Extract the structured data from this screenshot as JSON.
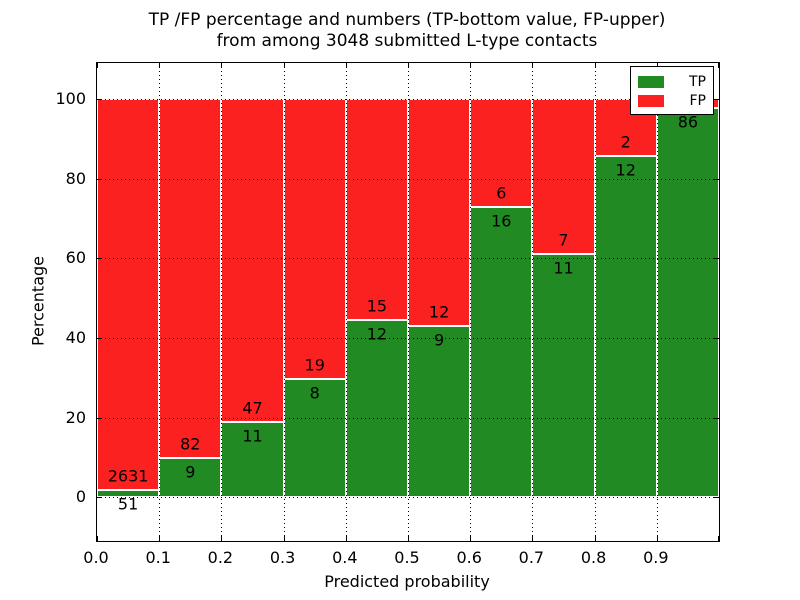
{
  "chart_data": {
    "type": "bar",
    "stacked": true,
    "unit": "percent",
    "title_line1": "TP /FP percentage and numbers (TP-bottom value, FP-upper)",
    "title_line2": "from among 3048 submitted L-type contacts",
    "total_contacts": 3048,
    "xlabel": "Predicted probability",
    "ylabel": "Percentage",
    "x_tick_labels": [
      "0.0",
      "0.1",
      "0.2",
      "0.3",
      "0.4",
      "0.5",
      "0.6",
      "0.7",
      "0.8",
      "0.9"
    ],
    "y_tick_labels": [
      "0",
      "20",
      "40",
      "60",
      "80",
      "100"
    ],
    "y_tick_values": [
      0,
      20,
      40,
      60,
      80,
      100
    ],
    "ylim": [
      -11,
      109
    ],
    "xlim": [
      0.0,
      1.0
    ],
    "grid": "dotted",
    "legend_position": "upper right",
    "legend": [
      {
        "name": "tp",
        "label": "TP",
        "color": "#228a22"
      },
      {
        "name": "fp",
        "label": "FP",
        "color": "#fc2121"
      }
    ],
    "colors": {
      "tp": "#228a22",
      "fp": "#fc2121",
      "background": "#ffffff",
      "axis": "#000000",
      "bar_edge": "#ffffff"
    },
    "bins": [
      {
        "x_range": "0.0-0.1",
        "tp": 51,
        "fp": 2631,
        "tp_pct": 1.9,
        "tp_label": "51",
        "fp_label": "2631"
      },
      {
        "x_range": "0.1-0.2",
        "tp": 9,
        "fp": 82,
        "tp_pct": 9.89,
        "tp_label": "9",
        "fp_label": "82"
      },
      {
        "x_range": "0.2-0.3",
        "tp": 11,
        "fp": 47,
        "tp_pct": 18.97,
        "tp_label": "11",
        "fp_label": "47"
      },
      {
        "x_range": "0.3-0.4",
        "tp": 8,
        "fp": 19,
        "tp_pct": 29.63,
        "tp_label": "8",
        "fp_label": "19"
      },
      {
        "x_range": "0.4-0.5",
        "tp": 12,
        "fp": 15,
        "tp_pct": 44.44,
        "tp_label": "12",
        "fp_label": "15"
      },
      {
        "x_range": "0.5-0.6",
        "tp": 9,
        "fp": 12,
        "tp_pct": 42.86,
        "tp_label": "9",
        "fp_label": "12"
      },
      {
        "x_range": "0.6-0.7",
        "tp": 16,
        "fp": 6,
        "tp_pct": 72.73,
        "tp_label": "16",
        "fp_label": "6"
      },
      {
        "x_range": "0.7-0.8",
        "tp": 11,
        "fp": 7,
        "tp_pct": 61.11,
        "tp_label": "11",
        "fp_label": "7"
      },
      {
        "x_range": "0.8-0.9",
        "tp": 12,
        "fp": 2,
        "tp_pct": 85.71,
        "tp_label": "12",
        "fp_label": "2"
      },
      {
        "x_range": "0.9-1.0",
        "tp": 86,
        "fp": 2,
        "tp_pct": 97.73,
        "tp_label": "86",
        "fp_label": ""
      }
    ]
  }
}
